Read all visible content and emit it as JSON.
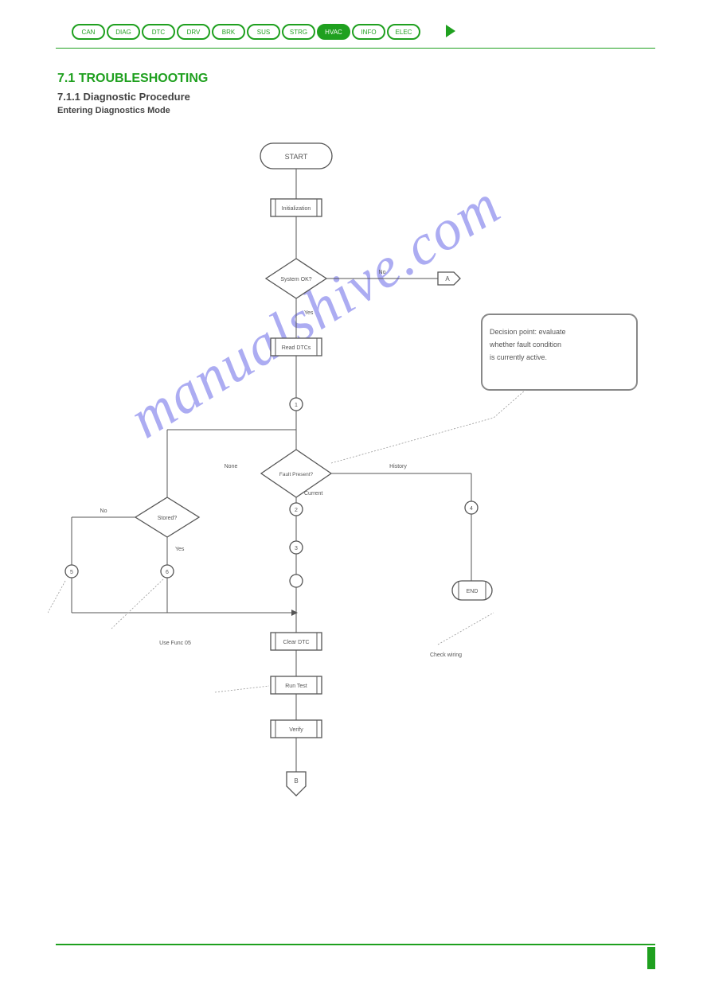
{
  "nav": {
    "items": [
      "CAN",
      "DIAG",
      "DTC",
      "DRV",
      "BRK",
      "SUS",
      "STRG",
      "HVAC",
      "INFO",
      "ELEC"
    ],
    "active_index": 7
  },
  "titles": {
    "section": "7.1  TROUBLESHOOTING",
    "sub": "7.1.1  Diagnostic Procedure",
    "subsub": "Entering Diagnostics Mode"
  },
  "flow": {
    "start": "START",
    "p1": "Initialization",
    "d1": "System OK?",
    "d1_no": "No",
    "d1_yes": "Yes",
    "off1": "A",
    "p2": "Read DTCs",
    "c1": "1",
    "d2": "Fault Present?",
    "d2_none": "None",
    "d2_cur": "Current",
    "d2_hist": "History",
    "c2": "2",
    "c3": "3",
    "c4": "4",
    "d3": "Stored?",
    "d3_yes": "Yes",
    "d3_no": "No",
    "c5": "5",
    "c6": "6",
    "term": "END",
    "p3": "Clear DTC",
    "p4": "Run Test",
    "p5": "Verify",
    "off2": "B"
  },
  "annotation": {
    "line1": "Decision point: evaluate",
    "line2": "whether fault condition",
    "line3": "is currently active."
  },
  "notes": {
    "n1": "Use Func 05",
    "n2": "Check wiring"
  },
  "colors": {
    "green": "#1fa01f",
    "stroke": "#555555",
    "annot": "#888888",
    "watermark": "#6a6ae8"
  }
}
